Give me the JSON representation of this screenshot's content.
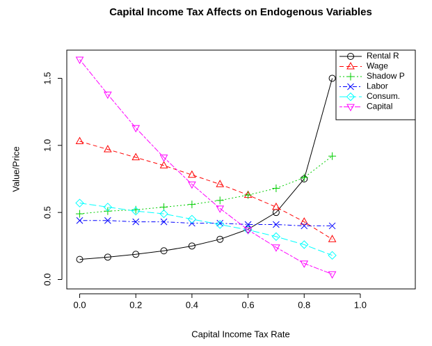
{
  "chart_data": {
    "type": "line",
    "title": "Capital Income Tax Affects on Endogenous Variables",
    "x_label": "Capital Income Tax Rate",
    "y_label": "Value/Price",
    "x": [
      0,
      0.1,
      0.2,
      0.3,
      0.4,
      0.5,
      0.6,
      0.7,
      0.8,
      0.9
    ],
    "series": [
      {
        "name": "Rental R",
        "color": "#000000",
        "marker": "circle",
        "dash": "solid",
        "values": [
          0.15,
          0.167,
          0.188,
          0.214,
          0.25,
          0.3,
          0.375,
          0.5,
          0.75,
          1.5
        ]
      },
      {
        "name": "Wage",
        "color": "#ff0000",
        "marker": "triangle-up",
        "dash": "dashed",
        "values": [
          1.03,
          0.97,
          0.91,
          0.85,
          0.78,
          0.71,
          0.63,
          0.54,
          0.43,
          0.3
        ]
      },
      {
        "name": "Shadow P",
        "color": "#00cd00",
        "marker": "plus",
        "dash": "dotted",
        "values": [
          0.49,
          0.51,
          0.52,
          0.54,
          0.56,
          0.59,
          0.63,
          0.68,
          0.76,
          0.92
        ]
      },
      {
        "name": "Labor",
        "color": "#0000ff",
        "marker": "cross",
        "dash": "dotdash",
        "values": [
          0.44,
          0.44,
          0.43,
          0.43,
          0.42,
          0.42,
          0.41,
          0.41,
          0.4,
          0.4
        ]
      },
      {
        "name": "Consum.",
        "color": "#00ffff",
        "marker": "diamond",
        "dash": "longdash",
        "values": [
          0.57,
          0.54,
          0.51,
          0.49,
          0.45,
          0.41,
          0.37,
          0.32,
          0.26,
          0.18
        ]
      },
      {
        "name": "Capital",
        "color": "#ff00ff",
        "marker": "triangle-down",
        "dash": "twodash",
        "values": [
          1.64,
          1.38,
          1.13,
          0.91,
          0.71,
          0.53,
          0.37,
          0.24,
          0.12,
          0.04
        ]
      }
    ],
    "xlim": [
      -0.046,
      1.196
    ],
    "ylim": [
      -0.07,
      1.71
    ],
    "xticks": [
      {
        "value": 0,
        "label": "0.0"
      },
      0.2,
      0.4,
      0.6,
      0.8,
      {
        "value": 1,
        "label": "1.0"
      }
    ],
    "yticks": [
      {
        "value": 0,
        "label": "0.0"
      },
      {
        "value": 0.5,
        "label": "0.5"
      },
      {
        "value": 1,
        "label": "1.0"
      },
      {
        "value": 1.5,
        "label": "1.5"
      }
    ],
    "legend": "topright"
  }
}
